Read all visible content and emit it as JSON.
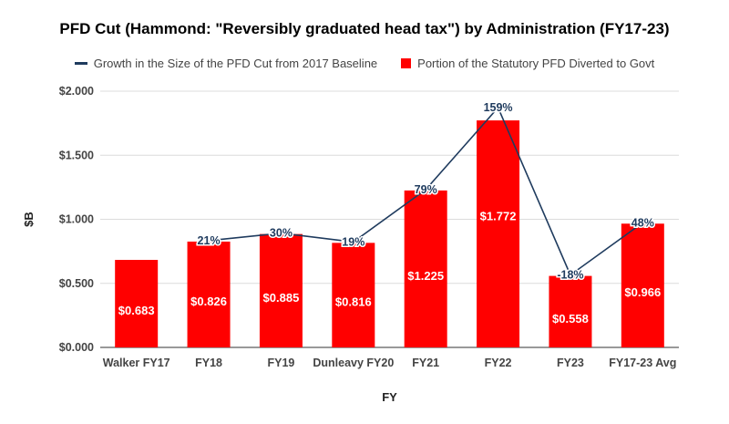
{
  "chart_data": {
    "type": "bar",
    "title": "PFD Cut (Hammond: \"Reversibly graduated head tax\") by Administration (FY17-23)",
    "xlabel": "FY",
    "ylabel": "$B",
    "categories": [
      "Walker FY17",
      "FY18",
      "FY19",
      "Dunleavy FY20",
      "FY21",
      "FY22",
      "FY23",
      "FY17-23 Avg"
    ],
    "ylim": [
      0,
      2.0
    ],
    "yticks": [
      "$0.000",
      "$0.500",
      "$1.000",
      "$1.500",
      "$2.000"
    ],
    "grid": true,
    "legend_position": "top",
    "series": [
      {
        "name": "Growth in the Size of the PFD Cut from 2017 Baseline",
        "type": "line",
        "color": "#1f3b5e",
        "values": [
          null,
          21,
          30,
          19,
          79,
          159,
          -18,
          48
        ],
        "labels": [
          "",
          "21%",
          "30%",
          "19%",
          "79%",
          "159%",
          "-18%",
          "48%"
        ]
      },
      {
        "name": "Portion of the Statutory PFD Diverted to Govt",
        "type": "bar",
        "color": "#ff0000",
        "values": [
          0.683,
          0.826,
          0.885,
          0.816,
          1.225,
          1.772,
          0.558,
          0.966
        ],
        "labels": [
          "$0.683",
          "$0.826",
          "$0.885",
          "$0.816",
          "$1.225",
          "$1.772",
          "$0.558",
          "$0.966"
        ]
      }
    ]
  }
}
